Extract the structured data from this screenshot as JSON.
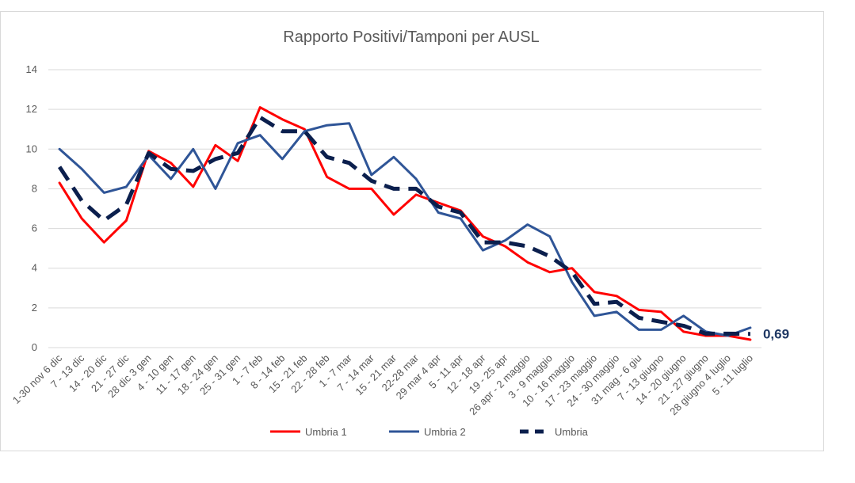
{
  "chart_data": {
    "type": "line",
    "title": "Rapporto Positivi/Tamponi per AUSL",
    "xlabel": "",
    "ylabel": "",
    "ylim": [
      0,
      14
    ],
    "yticks": [
      "0",
      "2",
      "4",
      "6",
      "8",
      "10",
      "12",
      "14"
    ],
    "grid": true,
    "legend_position": "bottom",
    "categories": [
      "1-30 nov 6 dic",
      "7 - 13 dic",
      "14 - 20 dic",
      "21 - 27 dic",
      "28 dic 3 gen",
      "4 - 10 gen",
      "11 - 17 gen",
      "18 - 24 gen",
      "25 - 31 gen",
      "1 - 7 feb",
      "8 - 14 feb",
      "15 - 21 feb",
      "22 - 28 feb",
      "1 - 7 mar",
      "7 - 14 mar",
      "15 - 21 mar",
      "22-28 mar",
      "29 mar 4 apr",
      "5 - 11 apr",
      "12 - 18 apr",
      "19 - 25 apr",
      "26 apr - 2 maggio",
      "3 - 9 maggio",
      "10 - 16 maggio",
      "17 - 23 maggio",
      "24 - 30 maggio",
      "31 mag - 6 giu",
      "7 - 13 giugno",
      "14 - 20 giugno",
      "21 - 27 giugno",
      "28 giugno 4 luglio",
      "5 - 11 luglio"
    ],
    "series": [
      {
        "name": "Umbria 1",
        "color": "#ff0000",
        "style": "solid",
        "values": [
          8.3,
          6.5,
          5.3,
          6.4,
          9.9,
          9.3,
          8.1,
          10.2,
          9.4,
          12.1,
          11.5,
          11.0,
          8.6,
          8.0,
          8.0,
          6.7,
          7.7,
          7.3,
          6.9,
          5.6,
          5.1,
          4.3,
          3.8,
          4.0,
          2.8,
          2.6,
          1.9,
          1.8,
          0.8,
          0.6,
          0.6,
          0.4
        ]
      },
      {
        "name": "Umbria 2",
        "color": "#2f5597",
        "style": "solid",
        "values": [
          10.0,
          9.0,
          7.8,
          8.1,
          9.7,
          8.5,
          10.0,
          8.0,
          10.3,
          10.7,
          9.5,
          10.9,
          11.2,
          11.3,
          8.7,
          9.6,
          8.5,
          6.8,
          6.5,
          4.9,
          5.4,
          6.2,
          5.6,
          3.3,
          1.6,
          1.8,
          0.9,
          0.9,
          1.6,
          0.8,
          0.6,
          1.0
        ]
      },
      {
        "name": "Umbria",
        "color": "#0b1f4d",
        "style": "dashed",
        "values": [
          9.1,
          7.4,
          6.4,
          7.2,
          9.8,
          9.0,
          8.9,
          9.5,
          9.8,
          11.6,
          10.9,
          10.9,
          9.6,
          9.3,
          8.4,
          8.0,
          8.0,
          7.1,
          6.8,
          5.3,
          5.3,
          5.1,
          4.6,
          3.8,
          2.2,
          2.3,
          1.5,
          1.3,
          1.1,
          0.7,
          0.7,
          0.69
        ]
      }
    ],
    "annotation": {
      "text": "0,69",
      "series": "Umbria",
      "index": 31
    }
  }
}
